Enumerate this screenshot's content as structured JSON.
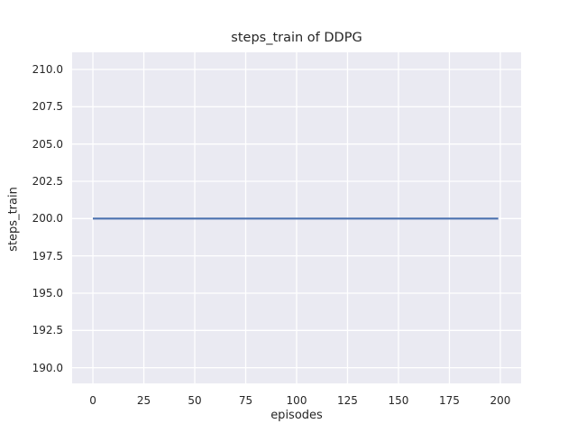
{
  "chart_data": {
    "type": "line",
    "title": "steps_train of DDPG",
    "xlabel": "episodes",
    "ylabel": "steps_train",
    "xlim": [
      -10.2,
      210.2
    ],
    "ylim": [
      188.95,
      211.15
    ],
    "xticks": [
      "0",
      "25",
      "50",
      "75",
      "100",
      "125",
      "150",
      "175",
      "200"
    ],
    "yticks": [
      "190.0",
      "192.5",
      "195.0",
      "197.5",
      "200.0",
      "202.5",
      "205.0",
      "207.5",
      "210.0"
    ],
    "grid": true,
    "legend_position": "none",
    "series": [
      {
        "name": "steps_train",
        "color": "#4c72b0",
        "line_width": 2.2,
        "points": [
          [
            0,
            200
          ],
          [
            199,
            200
          ]
        ]
      }
    ],
    "colors": {
      "plot_background": "#eaeaf2",
      "grid": "#ffffff",
      "text": "#262626",
      "figure_background": "#ffffff"
    }
  }
}
